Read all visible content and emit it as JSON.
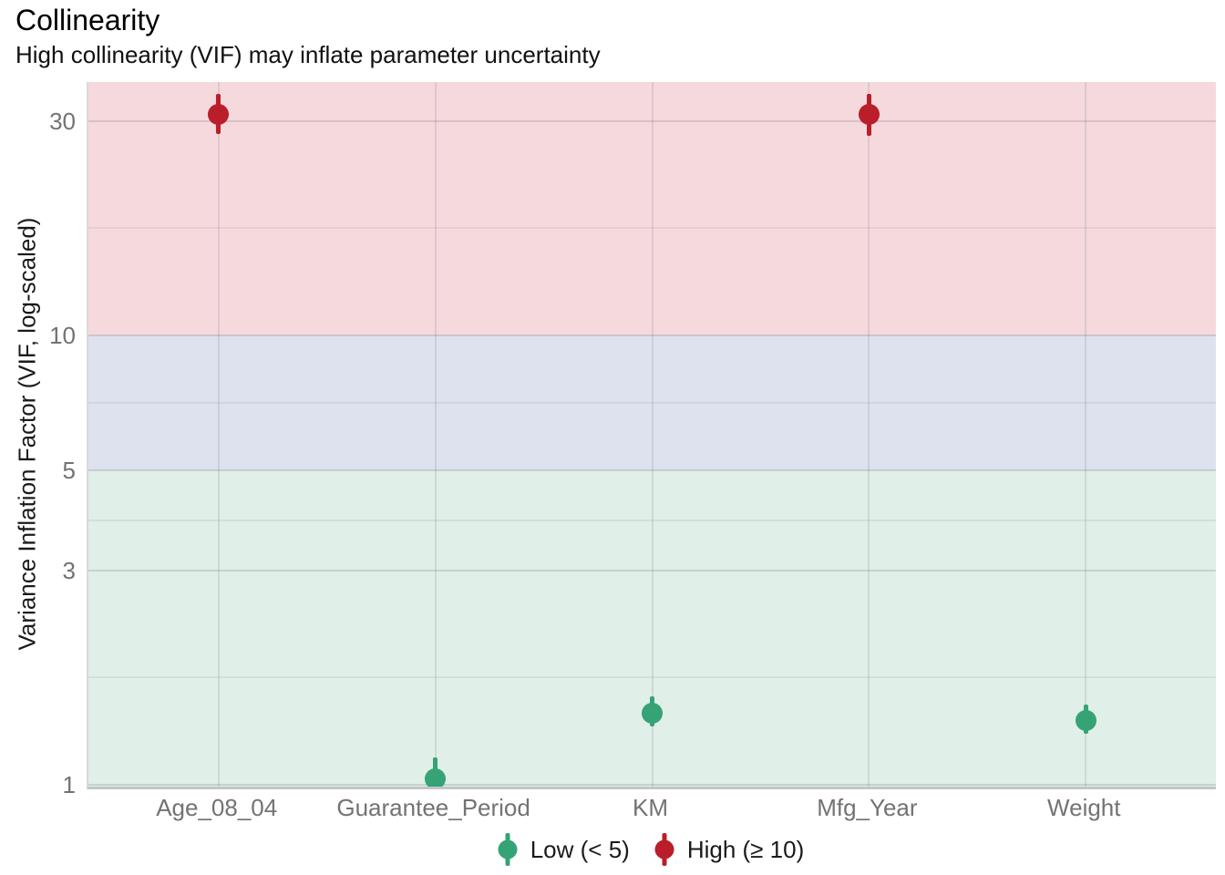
{
  "chart": {
    "title": "Collinearity",
    "subtitle": "High collinearity (VIF) may inflate parameter uncertainty",
    "ylabel": "Variance Inflation Factor (VIF, log-scaled)",
    "xlabel": ""
  },
  "colors": {
    "low": "#35a376",
    "high": "#b91e2a",
    "band_high": "#f5d9dd",
    "band_moderate": "#dde2ee",
    "band_low": "#e0efe7",
    "tick_label": "#737373",
    "text": "#1a1a1a"
  },
  "chart_data": {
    "type": "scatter",
    "subtype": "pointrange",
    "title": "Collinearity",
    "subtitle": "High collinearity (VIF) may inflate parameter uncertainty",
    "xlabel": "",
    "ylabel": "Variance Inflation Factor (VIF, log-scaled)",
    "yscale": "log",
    "ylim": [
      0.99,
      36.6
    ],
    "yticks": [
      1,
      3,
      5,
      10,
      30
    ],
    "ytick_labels": [
      "1",
      "3",
      "5",
      "10",
      "30"
    ],
    "y_minor_breaks": [
      1.732,
      3.873,
      7.071,
      17.321
    ],
    "grid": "on",
    "legend_position": "bottom",
    "categories": [
      "Age_08_04",
      "Guarantee_Period",
      "KM",
      "Mfg_Year",
      "Weight"
    ],
    "points": [
      {
        "category": "Age_08_04",
        "vif": 31.0,
        "ci_low": 28.0,
        "ci_high": 34.5,
        "level": "High"
      },
      {
        "category": "Guarantee_Period",
        "vif": 1.03,
        "ci_low": 1.0,
        "ci_high": 1.15,
        "level": "Low"
      },
      {
        "category": "KM",
        "vif": 1.44,
        "ci_low": 1.35,
        "ci_high": 1.57,
        "level": "Low"
      },
      {
        "category": "Mfg_Year",
        "vif": 31.0,
        "ci_low": 27.8,
        "ci_high": 34.5,
        "level": "High"
      },
      {
        "category": "Weight",
        "vif": 1.39,
        "ci_low": 1.3,
        "ci_high": 1.51,
        "level": "Low"
      }
    ],
    "bands": [
      {
        "label": "high",
        "meaning": "VIF >= 10",
        "range": [
          10,
          36.6
        ],
        "color": "#f5d9dd"
      },
      {
        "label": "moderate",
        "meaning": "5 <= VIF < 10",
        "range": [
          5,
          10
        ],
        "color": "#dde2ee"
      },
      {
        "label": "low",
        "meaning": "VIF < 5",
        "range": [
          0.99,
          5
        ],
        "color": "#e0efe7"
      }
    ],
    "legend": [
      {
        "label": "Low (< 5)",
        "color": "#35a376"
      },
      {
        "label": "High (≥ 10)",
        "color": "#b91e2a"
      }
    ]
  }
}
